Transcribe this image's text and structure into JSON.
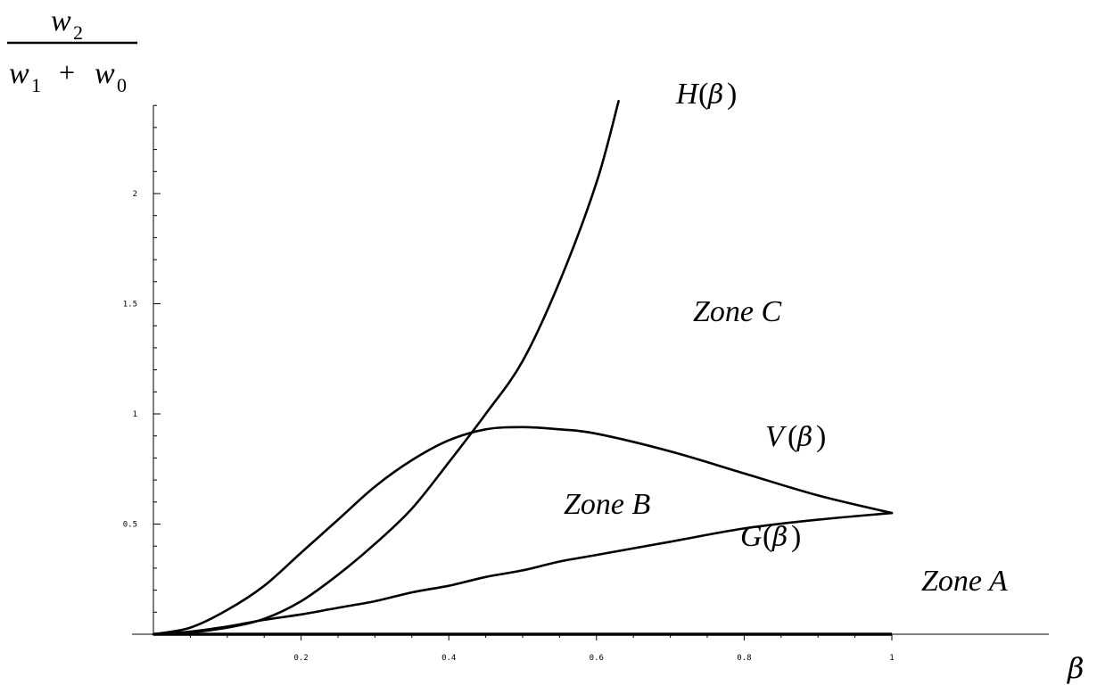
{
  "chart_data": {
    "type": "line",
    "title": "",
    "ylabel": {
      "numerator": {
        "var": "w",
        "sub": "2"
      },
      "denominator": [
        {
          "var": "w",
          "sub": "1"
        },
        {
          "op": "+"
        },
        {
          "var": "w",
          "sub": "0"
        }
      ]
    },
    "xlabel": "β",
    "xlim": [
      0,
      1
    ],
    "ylim": [
      0,
      2.4
    ],
    "xticks": [
      {
        "value": 0.2,
        "label": "0.2"
      },
      {
        "value": 0.4,
        "label": "0.4"
      },
      {
        "value": 0.6,
        "label": "0.6"
      },
      {
        "value": 0.8,
        "label": "0.8"
      },
      {
        "value": 1.0,
        "label": "1"
      }
    ],
    "yticks": [
      {
        "value": 0.5,
        "label": "0.5"
      },
      {
        "value": 1.0,
        "label": "1"
      },
      {
        "value": 1.5,
        "label": "1.5"
      },
      {
        "value": 2.0,
        "label": "2"
      }
    ],
    "series": [
      {
        "name": "H",
        "label": {
          "fn": "H",
          "arg": "β"
        },
        "x": [
          0,
          0.05,
          0.1,
          0.15,
          0.2,
          0.25,
          0.3,
          0.35,
          0.4,
          0.45,
          0.5,
          0.55,
          0.6,
          0.63
        ],
        "y": [
          0,
          0.008,
          0.03,
          0.07,
          0.15,
          0.27,
          0.41,
          0.57,
          0.78,
          1.0,
          1.24,
          1.6,
          2.05,
          2.42
        ]
      },
      {
        "name": "V",
        "label": {
          "fn": "V",
          "arg": "β"
        },
        "x": [
          0,
          0.05,
          0.1,
          0.15,
          0.2,
          0.25,
          0.3,
          0.35,
          0.4,
          0.45,
          0.5,
          0.55,
          0.6,
          0.7,
          0.8,
          0.9,
          1.0
        ],
        "y": [
          0,
          0.03,
          0.11,
          0.22,
          0.37,
          0.52,
          0.67,
          0.79,
          0.88,
          0.93,
          0.94,
          0.93,
          0.91,
          0.83,
          0.73,
          0.63,
          0.55
        ]
      },
      {
        "name": "G",
        "label": {
          "fn": "G",
          "arg": "β"
        },
        "x": [
          0,
          0.05,
          0.1,
          0.15,
          0.2,
          0.25,
          0.3,
          0.35,
          0.4,
          0.45,
          0.5,
          0.55,
          0.6,
          0.7,
          0.8,
          0.9,
          1.0
        ],
        "y": [
          0,
          0.012,
          0.035,
          0.065,
          0.09,
          0.12,
          0.15,
          0.19,
          0.22,
          0.26,
          0.29,
          0.33,
          0.36,
          0.42,
          0.48,
          0.52,
          0.55
        ]
      }
    ],
    "regions": [
      {
        "label": "Zone A"
      },
      {
        "label": "Zone B"
      },
      {
        "label": "Zone C"
      }
    ]
  }
}
